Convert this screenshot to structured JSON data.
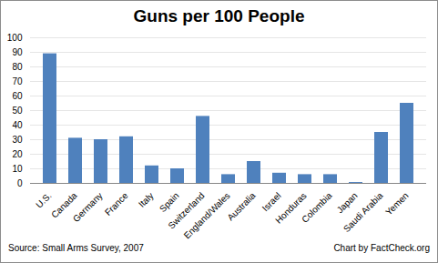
{
  "chart_data": {
    "type": "bar",
    "title": "Guns per 100 People",
    "categories": [
      "U.S.",
      "Canada",
      "Germany",
      "France",
      "Italy",
      "Spain",
      "Switzerland",
      "England/Wales",
      "Australia",
      "Israel",
      "Honduras",
      "Colombia",
      "Japan",
      "Saudi Arabia",
      "Yemen"
    ],
    "values": [
      89,
      31,
      30,
      32,
      12,
      10,
      46,
      6,
      15,
      7,
      6,
      6,
      0.6,
      35,
      55
    ],
    "color": "#4f81bd",
    "ylim": [
      0,
      100
    ],
    "yticks": [
      0,
      10,
      20,
      30,
      40,
      50,
      60,
      70,
      80,
      90,
      100
    ],
    "grid": true,
    "annotations": [
      "Source: Small Arms Survey, 2007",
      "Chart by FactCheck.org"
    ]
  }
}
